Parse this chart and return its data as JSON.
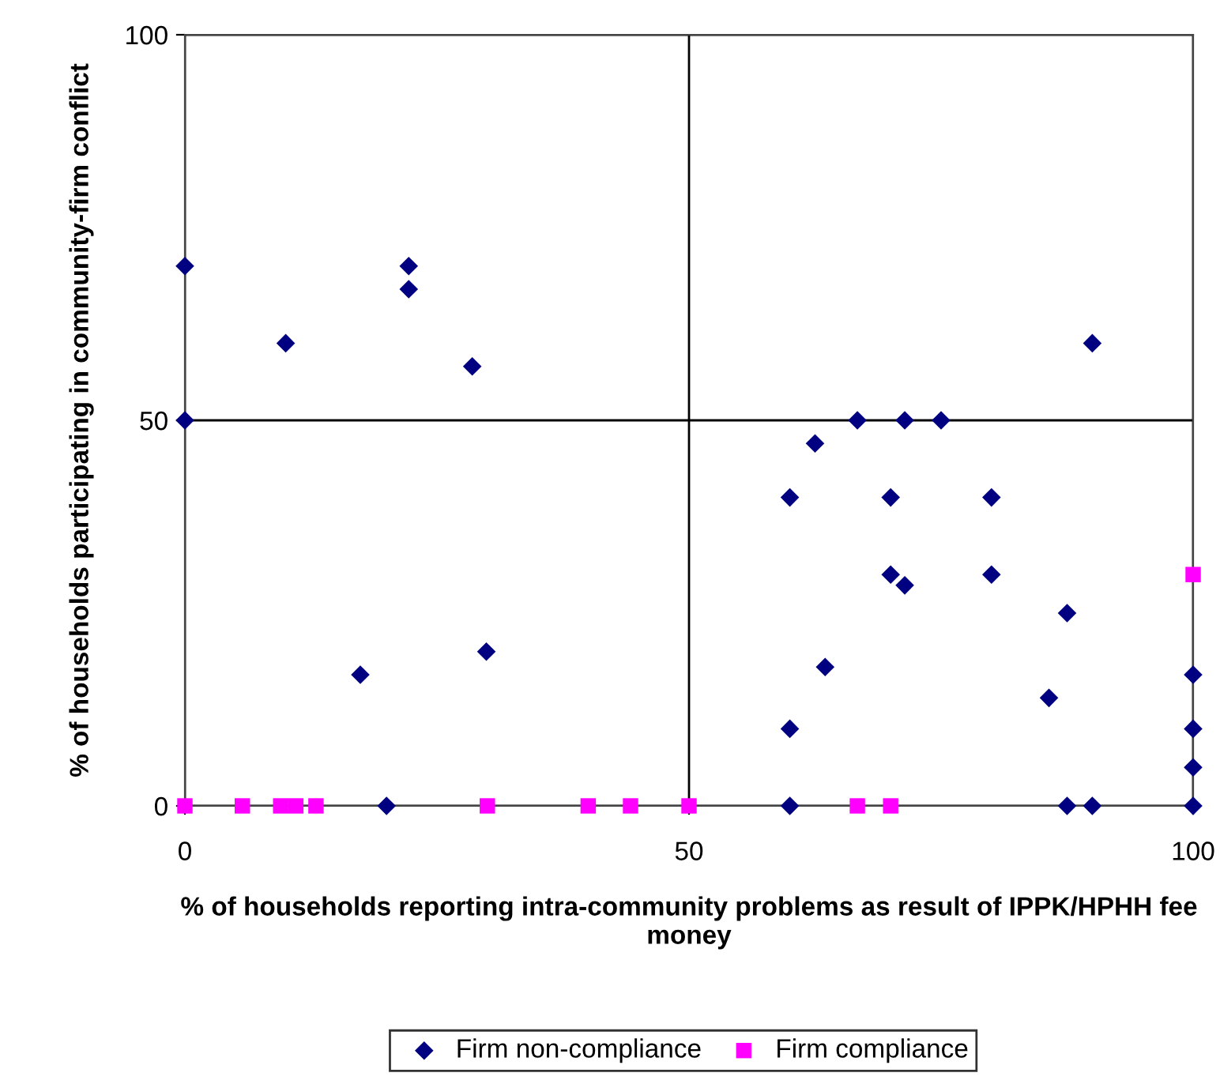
{
  "chart_data": {
    "type": "scatter",
    "xlabel": "% of households reporting intra-community problems as result of IPPK/HPHH fee money",
    "ylabel": "% of households participating in community-firm conflict",
    "xlim": [
      0,
      100
    ],
    "ylim": [
      0,
      100
    ],
    "xticks": [
      0,
      50,
      100
    ],
    "yticks": [
      0,
      50,
      100
    ],
    "grid": true,
    "legend": "bottom",
    "series": [
      {
        "name": "Firm non-compliance",
        "color": "#000080",
        "marker": "diamond",
        "x": [
          0,
          0,
          10,
          22.2,
          22.2,
          28.5,
          17.4,
          29.9,
          20,
          90,
          66.7,
          71.4,
          75,
          62.5,
          60,
          70,
          80,
          70,
          71.4,
          80,
          87.5,
          63.5,
          85.7,
          60,
          100,
          100,
          100,
          60,
          87.5,
          90,
          100
        ],
        "values": [
          70,
          50,
          60,
          70,
          67,
          57,
          17,
          20,
          0,
          60,
          50,
          50,
          50,
          47,
          40,
          40,
          40,
          30,
          28.6,
          30,
          25,
          18,
          14,
          10,
          17,
          10,
          5,
          0,
          0,
          0,
          0
        ]
      },
      {
        "name": "Firm compliance",
        "color": "#ff00ff",
        "marker": "square",
        "x": [
          0,
          5.7,
          9.5,
          11,
          13,
          30,
          40,
          44.2,
          50,
          66.7,
          70,
          100
        ],
        "values": [
          0,
          0,
          0,
          0,
          0,
          0,
          0,
          0,
          0,
          0,
          0,
          30
        ]
      }
    ]
  }
}
